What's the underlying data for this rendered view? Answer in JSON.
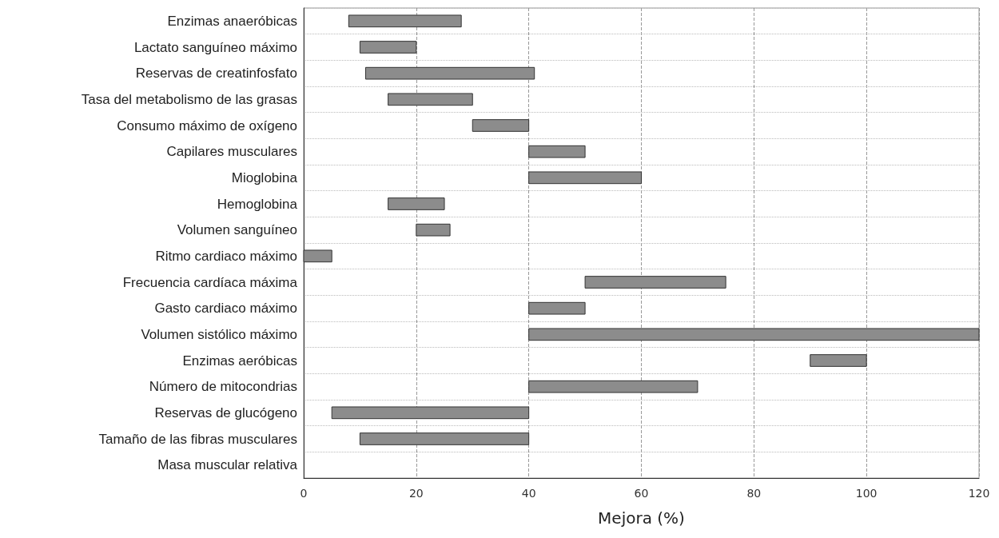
{
  "chart_data": {
    "type": "bar",
    "orientation": "horizontal",
    "xlabel": "Mejora (%)",
    "categories": [
      "Enzimas anaeróbicas",
      "Lactato sanguíneo máximo",
      "Reservas de creatinfosfato",
      "Tasa del metabolismo de las grasas",
      "Consumo máximo de oxígeno",
      "Capilares musculares",
      "Mioglobina",
      "Hemoglobina",
      "Volumen sanguíneo",
      "Ritmo cardiaco máximo",
      "Frecuencia cardíaca máxima",
      "Gasto cardiaco máximo",
      "Volumen sistólico máximo",
      "Enzimas aeróbicas",
      "Número de mitocondrias",
      "Reservas de glucógeno",
      "Tamaño de las fibras musculares",
      "Masa muscular relativa"
    ],
    "base": [
      8,
      10,
      11,
      15,
      30,
      40,
      40,
      15,
      20,
      0,
      50,
      40,
      40,
      90,
      40,
      5,
      10,
      null
    ],
    "values": [
      20,
      10,
      30,
      15,
      10,
      10,
      20,
      10,
      6,
      5,
      25,
      10,
      80,
      10,
      30,
      35,
      30,
      null
    ],
    "color": "#8c8c8c",
    "xlim": [
      0,
      120
    ],
    "xticks": [
      0,
      20,
      40,
      60,
      80,
      100,
      120
    ],
    "grid": true
  }
}
